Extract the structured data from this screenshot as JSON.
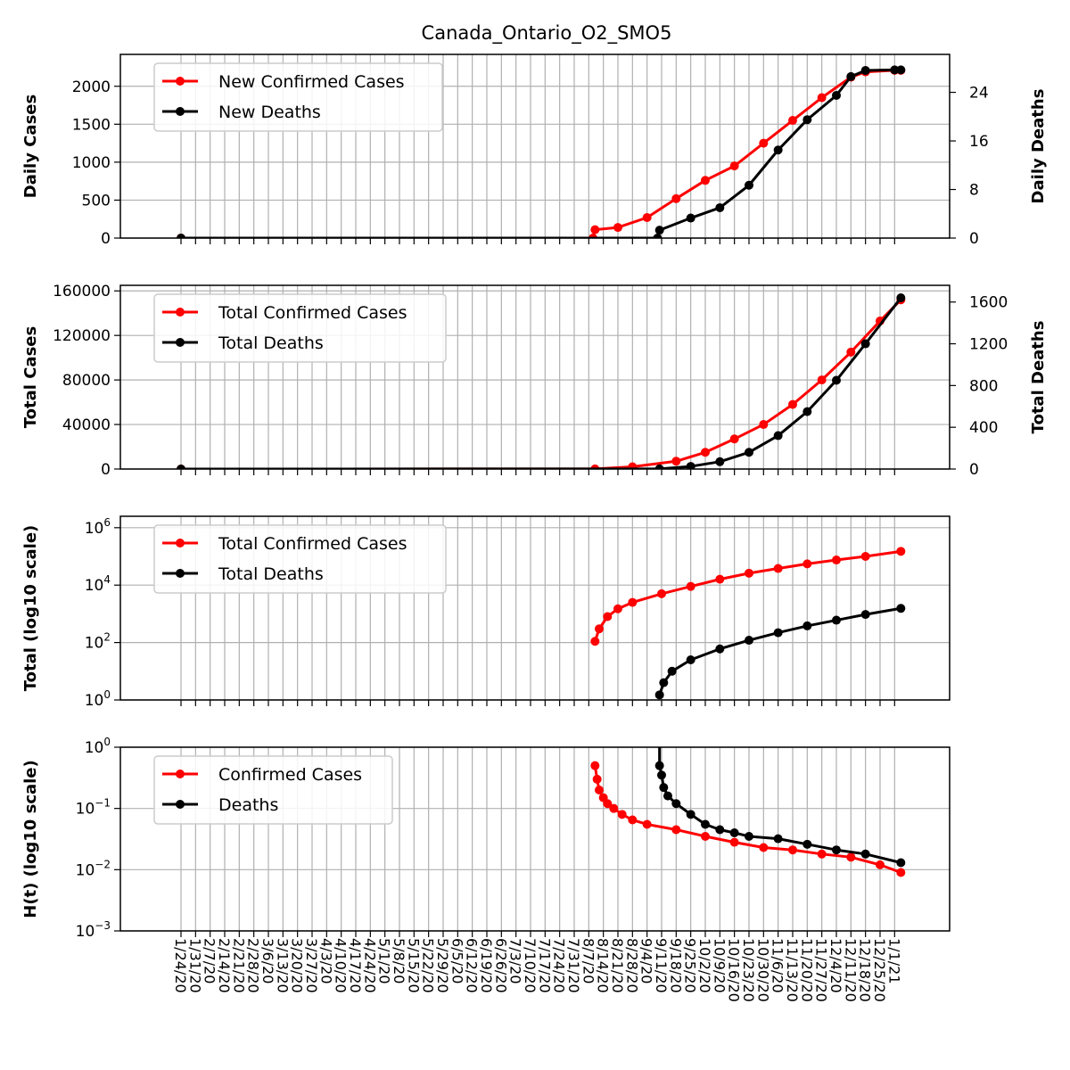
{
  "title": "Canada_Ontario_O2_SMO5",
  "colors": {
    "cases": "#ff0000",
    "deaths": "#000000",
    "grid": "#b0b0b0"
  },
  "x_dates": [
    "1/24/20",
    "1/31/20",
    "2/7/20",
    "2/14/20",
    "2/21/20",
    "2/28/20",
    "3/6/20",
    "3/13/20",
    "3/20/20",
    "3/27/20",
    "4/3/20",
    "4/10/20",
    "4/17/20",
    "4/24/20",
    "5/1/20",
    "5/8/20",
    "5/15/20",
    "5/22/20",
    "5/29/20",
    "6/5/20",
    "6/12/20",
    "6/19/20",
    "6/26/20",
    "7/3/20",
    "7/10/20",
    "7/17/20",
    "7/24/20",
    "7/31/20",
    "8/7/20",
    "8/14/20",
    "8/21/20",
    "8/28/20",
    "9/4/20",
    "9/11/20",
    "9/18/20",
    "9/25/20",
    "10/2/20",
    "10/9/20",
    "10/16/20",
    "10/23/20",
    "10/30/20",
    "11/6/20",
    "11/13/20",
    "11/20/20",
    "11/27/20",
    "12/4/20",
    "12/11/20",
    "12/18/20",
    "12/25/20",
    "1/1/21"
  ],
  "chart_data": [
    {
      "type": "line",
      "ylabel": "Daily Cases",
      "ylabel_right": "Daily Deaths",
      "ylim": [
        0,
        2420
      ],
      "yticks": [
        0,
        500,
        1000,
        1500,
        2000
      ],
      "ylim_right": [
        0,
        30.25
      ],
      "yticks_right": [
        0,
        8,
        16,
        24
      ],
      "legend": "top-left",
      "grid": true,
      "series": [
        {
          "name": "New Confirmed Cases",
          "axis": "left",
          "color": "#ff0000",
          "points": [
            [
              "1/24/20",
              0
            ],
            [
              "8/9/20",
              0
            ],
            [
              "8/10/20",
              110
            ],
            [
              "8/21/20",
              140
            ],
            [
              "9/4/20",
              270
            ],
            [
              "9/18/20",
              520
            ],
            [
              "10/2/20",
              760
            ],
            [
              "10/16/20",
              950
            ],
            [
              "10/30/20",
              1250
            ],
            [
              "11/13/20",
              1550
            ],
            [
              "11/27/20",
              1850
            ],
            [
              "12/11/20",
              2120
            ],
            [
              "12/18/20",
              2190
            ],
            [
              "1/1/21",
              2210
            ],
            [
              "1/4/21",
              2210
            ]
          ]
        },
        {
          "name": "New Deaths",
          "axis": "right",
          "color": "#000000",
          "points": [
            [
              "1/24/20",
              0
            ],
            [
              "9/9/20",
              0
            ],
            [
              "9/10/20",
              1.3
            ],
            [
              "9/25/20",
              3.3
            ],
            [
              "10/9/20",
              5.0
            ],
            [
              "10/23/20",
              8.7
            ],
            [
              "11/6/20",
              14.5
            ],
            [
              "11/20/20",
              19.5
            ],
            [
              "12/4/20",
              23.5
            ],
            [
              "12/11/20",
              26.6
            ],
            [
              "12/18/20",
              27.6
            ],
            [
              "1/1/21",
              27.7
            ],
            [
              "1/4/21",
              27.7
            ]
          ]
        }
      ]
    },
    {
      "type": "line",
      "ylabel": "Total Cases",
      "ylabel_right": "Total Deaths",
      "ylim": [
        0,
        165000
      ],
      "yticks": [
        0,
        40000,
        80000,
        120000,
        160000
      ],
      "ylim_right": [
        0,
        1760
      ],
      "yticks_right": [
        0,
        400,
        800,
        1200,
        1600
      ],
      "legend": "top-left",
      "grid": true,
      "series": [
        {
          "name": "Total Confirmed Cases",
          "axis": "left",
          "color": "#ff0000",
          "points": [
            [
              "1/24/20",
              0
            ],
            [
              "8/10/20",
              110
            ],
            [
              "8/28/20",
              2000
            ],
            [
              "9/18/20",
              7000
            ],
            [
              "10/2/20",
              15000
            ],
            [
              "10/16/20",
              27000
            ],
            [
              "10/30/20",
              40000
            ],
            [
              "11/13/20",
              58000
            ],
            [
              "11/27/20",
              80000
            ],
            [
              "12/11/20",
              105000
            ],
            [
              "12/25/20",
              133000
            ],
            [
              "1/4/21",
              152000
            ]
          ]
        },
        {
          "name": "Total Deaths",
          "axis": "right",
          "color": "#000000",
          "points": [
            [
              "1/24/20",
              0
            ],
            [
              "9/10/20",
              1
            ],
            [
              "9/25/20",
              25
            ],
            [
              "10/9/20",
              70
            ],
            [
              "10/23/20",
              160
            ],
            [
              "11/6/20",
              320
            ],
            [
              "11/20/20",
              550
            ],
            [
              "12/4/20",
              850
            ],
            [
              "12/18/20",
              1200
            ],
            [
              "1/4/21",
              1640
            ]
          ]
        }
      ]
    },
    {
      "type": "line",
      "ylabel": "Total (log10 scale)",
      "yscale": "log",
      "ylim": [
        1,
        2500000
      ],
      "yticks": [
        1,
        100,
        10000,
        1000000
      ],
      "ytick_labels": [
        [
          "10",
          "0"
        ],
        [
          "10",
          "2"
        ],
        [
          "10",
          "4"
        ],
        [
          "10",
          "6"
        ]
      ],
      "legend": "top-left",
      "grid": true,
      "series": [
        {
          "name": "Total Confirmed Cases",
          "color": "#ff0000",
          "points": [
            [
              "8/10/20",
              110
            ],
            [
              "8/12/20",
              300
            ],
            [
              "8/16/20",
              800
            ],
            [
              "8/21/20",
              1500
            ],
            [
              "8/28/20",
              2500
            ],
            [
              "9/11/20",
              5000
            ],
            [
              "9/25/20",
              9000
            ],
            [
              "10/9/20",
              16000
            ],
            [
              "10/23/20",
              26000
            ],
            [
              "11/6/20",
              38000
            ],
            [
              "11/20/20",
              55000
            ],
            [
              "12/4/20",
              75000
            ],
            [
              "12/18/20",
              100000
            ],
            [
              "1/4/21",
              150000
            ]
          ]
        },
        {
          "name": "Total Deaths",
          "color": "#000000",
          "points": [
            [
              "9/10/20",
              1.5
            ],
            [
              "9/12/20",
              4
            ],
            [
              "9/16/20",
              10
            ],
            [
              "9/25/20",
              25
            ],
            [
              "10/9/20",
              60
            ],
            [
              "10/23/20",
              120
            ],
            [
              "11/6/20",
              220
            ],
            [
              "11/20/20",
              380
            ],
            [
              "12/4/20",
              600
            ],
            [
              "12/18/20",
              950
            ],
            [
              "1/4/21",
              1550
            ]
          ]
        }
      ]
    },
    {
      "type": "line",
      "ylabel": "H(t) (log10 scale)",
      "yscale": "log",
      "ylim": [
        0.001,
        1
      ],
      "yticks": [
        0.001,
        0.01,
        0.1,
        1
      ],
      "ytick_labels": [
        [
          "10",
          "−3"
        ],
        [
          "10",
          "−2"
        ],
        [
          "10",
          "−1"
        ],
        [
          "10",
          "0"
        ]
      ],
      "legend": "top-left",
      "grid": true,
      "series": [
        {
          "name": "Confirmed Cases",
          "color": "#ff0000",
          "points": [
            [
              "8/10/20",
              0.5
            ],
            [
              "8/11/20",
              0.3
            ],
            [
              "8/12/20",
              0.2
            ],
            [
              "8/14/20",
              0.15
            ],
            [
              "8/16/20",
              0.12
            ],
            [
              "8/19/20",
              0.1
            ],
            [
              "8/23/20",
              0.08
            ],
            [
              "8/28/20",
              0.065
            ],
            [
              "9/4/20",
              0.055
            ],
            [
              "9/18/20",
              0.045
            ],
            [
              "10/2/20",
              0.035
            ],
            [
              "10/16/20",
              0.028
            ],
            [
              "10/30/20",
              0.023
            ],
            [
              "11/13/20",
              0.021
            ],
            [
              "11/27/20",
              0.018
            ],
            [
              "12/11/20",
              0.016
            ],
            [
              "12/25/20",
              0.012
            ],
            [
              "1/4/21",
              0.009
            ]
          ]
        },
        {
          "name": "Deaths",
          "color": "#000000",
          "points": [
            [
              "9/10/20",
              1.5
            ],
            [
              "9/10/20",
              0.5
            ],
            [
              "9/11/20",
              0.35
            ],
            [
              "9/12/20",
              0.22
            ],
            [
              "9/14/20",
              0.16
            ],
            [
              "9/18/20",
              0.12
            ],
            [
              "9/25/20",
              0.08
            ],
            [
              "10/2/20",
              0.055
            ],
            [
              "10/9/20",
              0.045
            ],
            [
              "10/16/20",
              0.04
            ],
            [
              "10/23/20",
              0.035
            ],
            [
              "11/6/20",
              0.032
            ],
            [
              "11/20/20",
              0.026
            ],
            [
              "12/4/20",
              0.021
            ],
            [
              "12/18/20",
              0.018
            ],
            [
              "1/4/21",
              0.013
            ]
          ]
        }
      ]
    }
  ]
}
